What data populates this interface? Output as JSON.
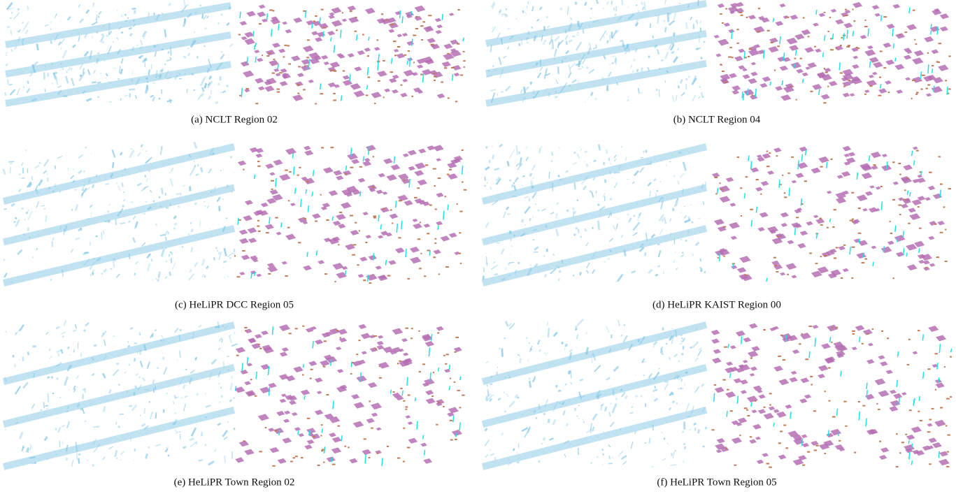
{
  "figure": {
    "subfigures": [
      {
        "caption": "(a) NCLT Region 02"
      },
      {
        "caption": "(b) NCLT Region 04"
      },
      {
        "caption": "(c) HeLiPR DCC Region 05"
      },
      {
        "caption": "(d) HeLiPR KAIST Region 00"
      },
      {
        "caption": "(e) HeLiPR Town Region 02"
      },
      {
        "caption": "(f) HeLiPR Town Region 05"
      }
    ]
  }
}
